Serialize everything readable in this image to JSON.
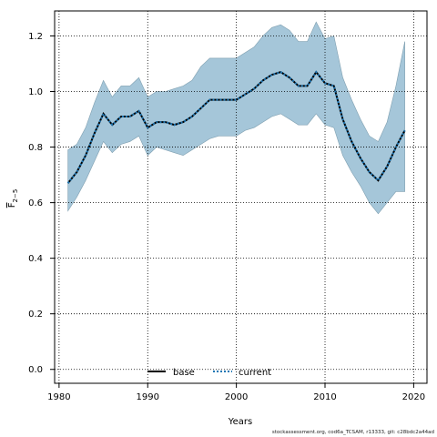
{
  "chart_data": {
    "type": "line",
    "title": "",
    "xlabel": "Years",
    "ylabel": "F̅2−5",
    "ylabel_main": "F",
    "ylabel_sub": "2−5",
    "xlim": [
      1979.5,
      2021.5
    ],
    "ylim": [
      -0.05,
      1.29
    ],
    "xticks": [
      1980,
      1990,
      2000,
      2010,
      2020
    ],
    "yticks": [
      0.0,
      0.2,
      0.4,
      0.6,
      0.8,
      1.0,
      1.2
    ],
    "xtick_labels": [
      "1980",
      "1990",
      "2000",
      "2010",
      "2020"
    ],
    "ytick_labels": [
      "0.0",
      "0.2",
      "0.4",
      "0.6",
      "0.8",
      "1.0",
      "1.2"
    ],
    "grid": true,
    "legend_position": "bottom-center",
    "x": [
      1981,
      1982,
      1983,
      1984,
      1985,
      1986,
      1987,
      1988,
      1989,
      1990,
      1991,
      1992,
      1993,
      1994,
      1995,
      1996,
      1997,
      1998,
      1999,
      2000,
      2001,
      2002,
      2003,
      2004,
      2005,
      2006,
      2007,
      2008,
      2009,
      2010,
      2011,
      2012,
      2013,
      2014,
      2015,
      2016,
      2017,
      2018,
      2019
    ],
    "band": {
      "color": "#a5c6d9",
      "upper": [
        0.79,
        0.81,
        0.87,
        0.96,
        1.04,
        0.98,
        1.02,
        1.02,
        1.05,
        0.98,
        1.0,
        1.0,
        1.01,
        1.02,
        1.04,
        1.09,
        1.12,
        1.12,
        1.12,
        1.12,
        1.14,
        1.16,
        1.2,
        1.23,
        1.24,
        1.22,
        1.18,
        1.18,
        1.25,
        1.19,
        1.2,
        1.05,
        0.97,
        0.9,
        0.84,
        0.82,
        0.89,
        1.02,
        1.18
      ],
      "lower": [
        0.57,
        0.62,
        0.68,
        0.75,
        0.82,
        0.78,
        0.81,
        0.82,
        0.84,
        0.77,
        0.8,
        0.79,
        0.78,
        0.77,
        0.79,
        0.81,
        0.83,
        0.84,
        0.84,
        0.84,
        0.86,
        0.87,
        0.89,
        0.91,
        0.92,
        0.9,
        0.88,
        0.88,
        0.92,
        0.88,
        0.87,
        0.77,
        0.71,
        0.66,
        0.6,
        0.56,
        0.6,
        0.64,
        0.64
      ]
    },
    "series": [
      {
        "name": "base",
        "color": "#000000",
        "line_style": "solid",
        "values": [
          0.67,
          0.71,
          0.77,
          0.85,
          0.92,
          0.88,
          0.91,
          0.91,
          0.93,
          0.87,
          0.89,
          0.89,
          0.88,
          0.89,
          0.91,
          0.94,
          0.97,
          0.97,
          0.97,
          0.97,
          0.99,
          1.01,
          1.04,
          1.06,
          1.07,
          1.05,
          1.02,
          1.02,
          1.07,
          1.03,
          1.02,
          0.9,
          0.82,
          0.76,
          0.71,
          0.68,
          0.73,
          0.8,
          0.86
        ]
      },
      {
        "name": "current",
        "color": "#1f77b4",
        "line_style": "dotted",
        "values": [
          0.67,
          0.71,
          0.77,
          0.85,
          0.92,
          0.88,
          0.91,
          0.91,
          0.93,
          0.87,
          0.89,
          0.89,
          0.88,
          0.89,
          0.91,
          0.94,
          0.97,
          0.97,
          0.97,
          0.97,
          0.99,
          1.01,
          1.04,
          1.06,
          1.07,
          1.05,
          1.02,
          1.02,
          1.07,
          1.03,
          1.02,
          0.9,
          0.82,
          0.76,
          0.71,
          0.68,
          0.73,
          0.8,
          0.86
        ]
      }
    ]
  },
  "footer_text": "stockassessment.org, cod6a_TCSAM, r13333, git: c28bdc2a44ad"
}
